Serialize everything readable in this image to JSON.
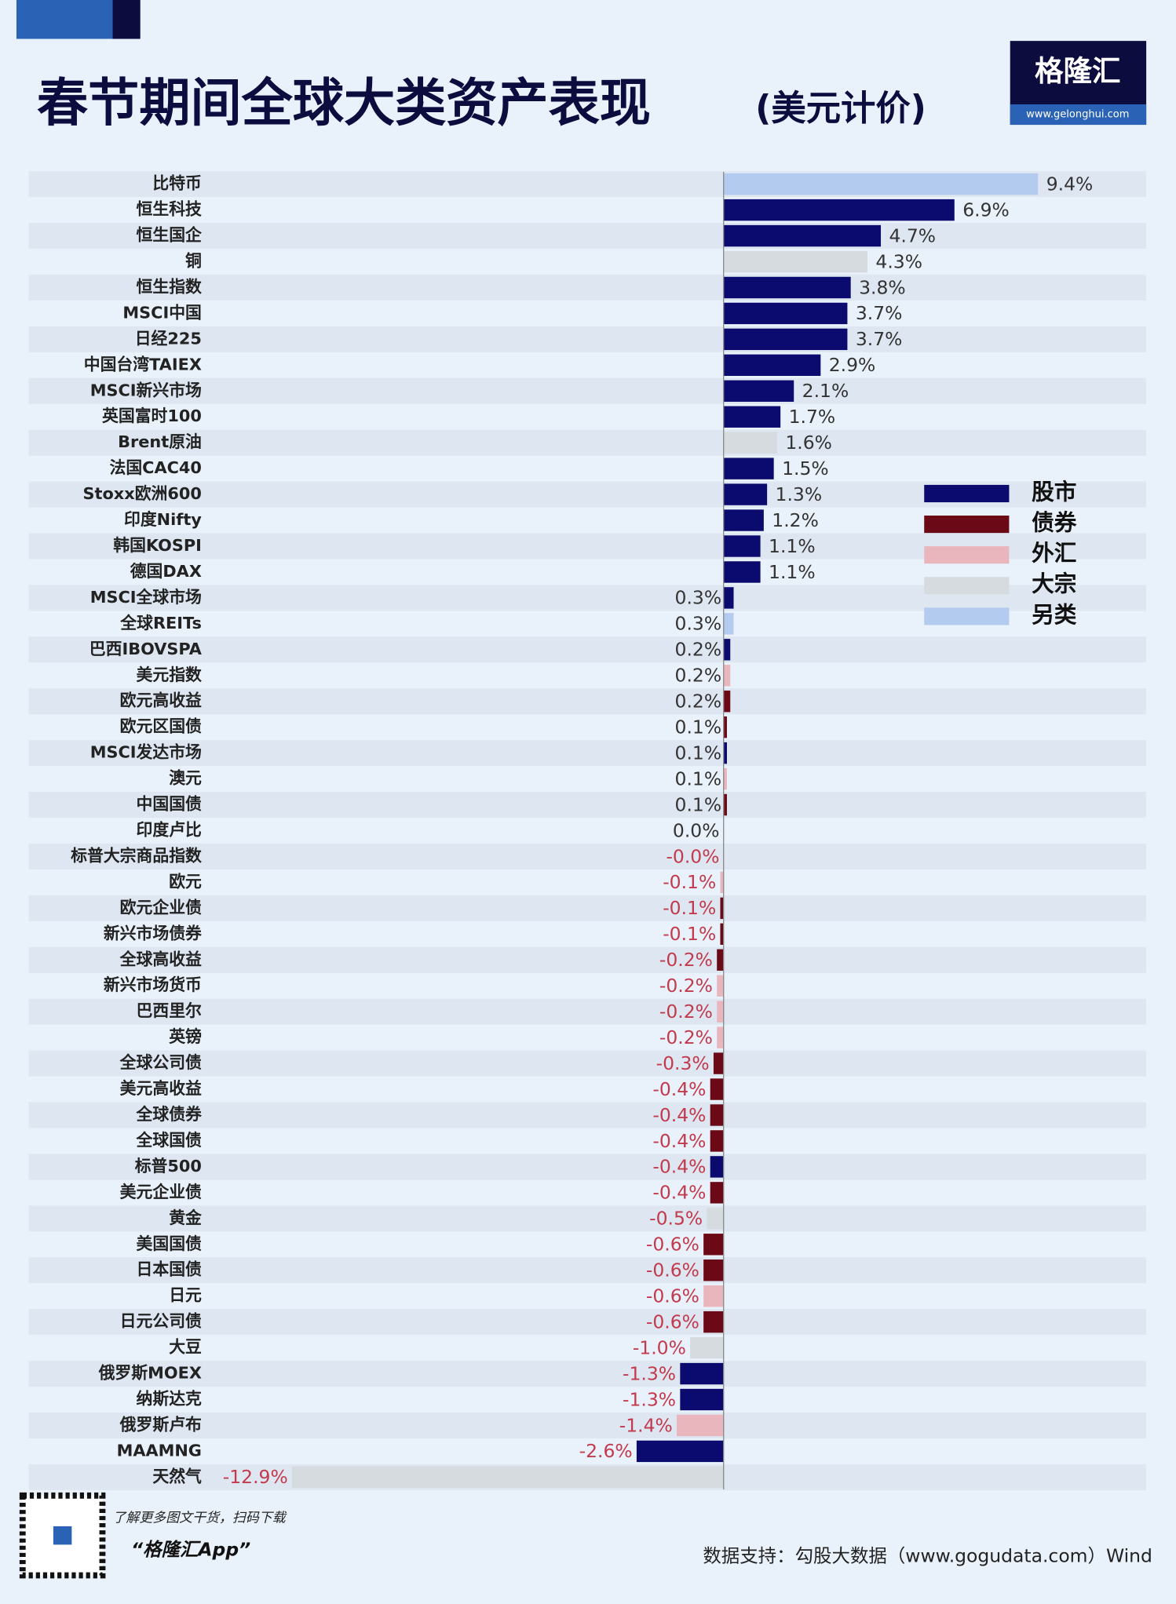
{
  "chart_data": {
    "type": "hbar",
    "title": "春节期间全球大类资产表现",
    "subtitle": "(美元计价)",
    "categories": [
      "比特币",
      "恒生科技",
      "恒生国企",
      "铜",
      "恒生指数",
      "MSCI中国",
      "日经225",
      "中国台湾TAIEX",
      "MSCI新兴市场",
      "英国富时100",
      "Brent原油",
      "法国CAC40",
      "Stoxx欧洲600",
      "印度Nifty",
      "韩国KOSPI",
      "德国DAX",
      "MSCI全球市场",
      "全球REITs",
      "巴西IBOVSPA",
      "美元指数",
      "欧元高收益",
      "欧元区国债",
      "MSCI发达市场",
      "澳元",
      "中国国债",
      "印度卢比",
      "标普大宗商品指数",
      "欧元",
      "欧元企业债",
      "新兴市场债券",
      "全球高收益",
      "新兴市场货币",
      "巴西里尔",
      "英镑",
      "全球公司债",
      "美元高收益",
      "全球债券",
      "全球国债",
      "标普500",
      "美元企业债",
      "黄金",
      "美国国债",
      "日本国债",
      "日元",
      "日元公司债",
      "大豆",
      "俄罗斯MOEX",
      "纳斯达克",
      "俄罗斯卢布",
      "MAAMNG",
      "天然气"
    ],
    "values": [
      9.4,
      6.9,
      4.7,
      4.3,
      3.8,
      3.7,
      3.7,
      2.9,
      2.1,
      1.7,
      1.6,
      1.5,
      1.3,
      1.2,
      1.1,
      1.1,
      0.3,
      0.3,
      0.2,
      0.2,
      0.2,
      0.1,
      0.1,
      0.1,
      0.1,
      0.0,
      -0.0,
      -0.1,
      -0.1,
      -0.1,
      -0.2,
      -0.2,
      -0.2,
      -0.2,
      -0.3,
      -0.4,
      -0.4,
      -0.4,
      -0.4,
      -0.4,
      -0.5,
      -0.6,
      -0.6,
      -0.6,
      -0.6,
      -1.0,
      -1.3,
      -1.3,
      -1.4,
      -2.6,
      -12.9
    ],
    "value_labels": [
      "9.4%",
      "6.9%",
      "4.7%",
      "4.3%",
      "3.8%",
      "3.7%",
      "3.7%",
      "2.9%",
      "2.1%",
      "1.7%",
      "1.6%",
      "1.5%",
      "1.3%",
      "1.2%",
      "1.1%",
      "1.1%",
      "0.3%",
      "0.3%",
      "0.2%",
      "0.2%",
      "0.2%",
      "0.1%",
      "0.1%",
      "0.1%",
      "0.1%",
      "0.0%",
      "-0.0%",
      "-0.1%",
      "-0.1%",
      "-0.1%",
      "-0.2%",
      "-0.2%",
      "-0.2%",
      "-0.2%",
      "-0.3%",
      "-0.4%",
      "-0.4%",
      "-0.4%",
      "-0.4%",
      "-0.4%",
      "-0.5%",
      "-0.6%",
      "-0.6%",
      "-0.6%",
      "-0.6%",
      "-1.0%",
      "-1.3%",
      "-1.3%",
      "-1.4%",
      "-2.6%",
      "-12.9%"
    ],
    "colors": [
      "#b3cbef",
      "#0b0b6f",
      "#0b0b6f",
      "#d6dbe0",
      "#0b0b6f",
      "#0b0b6f",
      "#0b0b6f",
      "#0b0b6f",
      "#0b0b6f",
      "#0b0b6f",
      "#d6dbe0",
      "#0b0b6f",
      "#0b0b6f",
      "#0b0b6f",
      "#0b0b6f",
      "#0b0b6f",
      "#0b0b6f",
      "#b3cbef",
      "#0b0b6f",
      "#e9b6be",
      "#6b0a16",
      "#6b0a16",
      "#0b0b6f",
      "#e9b6be",
      "#6b0a16",
      "#e9b6be",
      "#d6dbe0",
      "#e9b6be",
      "#6b0a16",
      "#6b0a16",
      "#6b0a16",
      "#e9b6be",
      "#e9b6be",
      "#e9b6be",
      "#6b0a16",
      "#6b0a16",
      "#6b0a16",
      "#6b0a16",
      "#0b0b6f",
      "#6b0a16",
      "#d6dbe0",
      "#6b0a16",
      "#6b0a16",
      "#e9b6be",
      "#6b0a16",
      "#d6dbe0",
      "#0b0b6f",
      "#0b0b6f",
      "#e9b6be",
      "#0b0b6f",
      "#d6dbe0"
    ],
    "xlim": [
      -13,
      13
    ],
    "legend": [
      {
        "name": "股市",
        "color": "#0b0b6f"
      },
      {
        "name": "债券",
        "color": "#6b0a16"
      },
      {
        "name": "外汇",
        "color": "#e9b6be"
      },
      {
        "name": "大宗",
        "color": "#d6dbe0"
      },
      {
        "name": "另类",
        "color": "#b3cbef"
      }
    ]
  },
  "logo": {
    "name": "格隆汇",
    "url": "www.gelonghui.com"
  },
  "footer": {
    "qr_caption": "了解更多图文干货，扫码下载",
    "app": "“格隆汇App”",
    "source": "数据支持：勾股大数据（www.gogudata.com）Wind"
  }
}
